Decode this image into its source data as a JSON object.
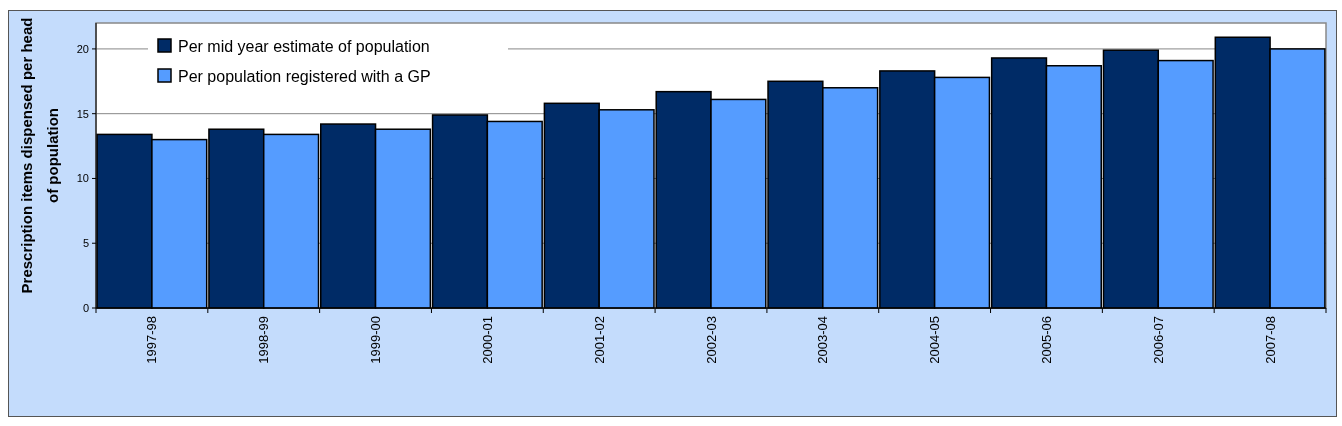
{
  "chart_data": {
    "type": "bar",
    "ylabel": "Prescription items dispensed per head of population",
    "categories": [
      "1997-98",
      "1998-99",
      "1999-00",
      "2000-01",
      "2001-02",
      "2002-03",
      "2003-04",
      "2004-05",
      "2005-06",
      "2006-07",
      "2007-08"
    ],
    "series": [
      {
        "name": "Per mid year estimate of population",
        "color": "#002b66",
        "values": [
          13.4,
          13.8,
          14.2,
          14.9,
          15.8,
          16.7,
          17.5,
          18.3,
          19.3,
          19.9,
          20.9
        ]
      },
      {
        "name": "Per population registered with a GP",
        "color": "#559cff",
        "values": [
          13.0,
          13.4,
          13.8,
          14.4,
          15.3,
          16.1,
          17.0,
          17.8,
          18.7,
          19.1,
          20.0
        ]
      }
    ],
    "ylim": [
      0,
      22
    ],
    "yticks": [
      0,
      5,
      10,
      15,
      20
    ],
    "grid": "y",
    "legend": "top left"
  }
}
